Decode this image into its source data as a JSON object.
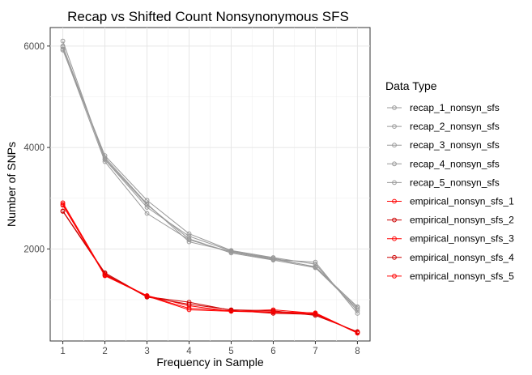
{
  "chart_data": {
    "type": "line",
    "title": "Recap vs Shifted Count Nonsynonymous SFS",
    "xlabel": "Frequency in Sample",
    "ylabel": "Number of SNPs",
    "x": [
      1,
      2,
      3,
      4,
      5,
      6,
      7,
      8
    ],
    "xlim": [
      0.7,
      8.3
    ],
    "ylim": [
      185,
      6365
    ],
    "x_ticks": [
      1,
      2,
      3,
      4,
      5,
      6,
      7,
      8
    ],
    "y_ticks": [
      2000,
      4000,
      6000
    ],
    "grid": true,
    "legend_title": "Data Type",
    "legend_position": "right",
    "series": [
      {
        "name": "recap_1_nonsyn_sfs",
        "color": "#999999",
        "values": [
          6100,
          3760,
          2820,
          2250,
          1960,
          1800,
          1650,
          850
        ]
      },
      {
        "name": "recap_2_nonsyn_sfs",
        "color": "#999999",
        "values": [
          5940,
          3720,
          2700,
          2180,
          1940,
          1790,
          1740,
          730
        ]
      },
      {
        "name": "recap_3_nonsyn_sfs",
        "color": "#999999",
        "values": [
          5920,
          3840,
          2960,
          2300,
          1970,
          1830,
          1700,
          780
        ]
      },
      {
        "name": "recap_4_nonsyn_sfs",
        "color": "#999999",
        "values": [
          6000,
          3770,
          2870,
          2200,
          1920,
          1780,
          1630,
          820
        ]
      },
      {
        "name": "recap_5_nonsyn_sfs",
        "color": "#999999",
        "values": [
          5980,
          3800,
          2890,
          2140,
          1950,
          1820,
          1640,
          860
        ]
      },
      {
        "name": "empirical_nonsyn_sfs_1",
        "color": "#ff0000",
        "values": [
          2880,
          1470,
          1070,
          830,
          780,
          760,
          740,
          350
        ]
      },
      {
        "name": "empirical_nonsyn_sfs_2",
        "color": "#cc0000",
        "values": [
          2750,
          1530,
          1060,
          950,
          790,
          730,
          710,
          360
        ]
      },
      {
        "name": "empirical_nonsyn_sfs_3",
        "color": "#ff0000",
        "values": [
          2910,
          1490,
          1080,
          880,
          770,
          800,
          730,
          340
        ]
      },
      {
        "name": "empirical_nonsyn_sfs_4",
        "color": "#cc0000",
        "values": [
          2740,
          1510,
          1050,
          910,
          800,
          780,
          690,
          370
        ]
      },
      {
        "name": "empirical_nonsyn_sfs_5",
        "color": "#ff0000",
        "values": [
          2860,
          1480,
          1070,
          800,
          770,
          750,
          720,
          350
        ]
      }
    ]
  }
}
